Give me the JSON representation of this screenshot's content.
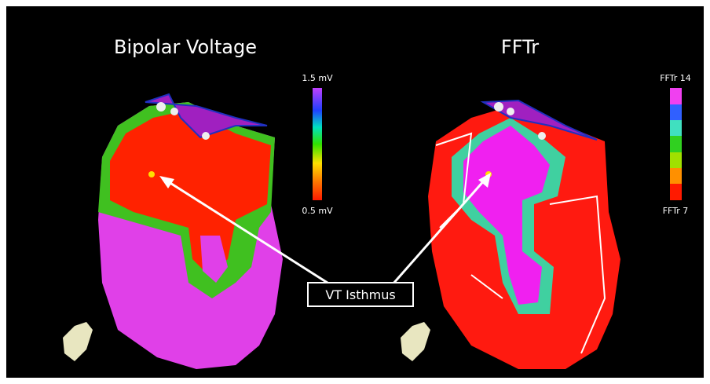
{
  "panels": [
    {
      "title": "Bipolar Voltage",
      "scale_max": "1.5 mV",
      "scale_min": "0.5 mV"
    },
    {
      "title": "FFTr",
      "scale_max": "FFTr 14",
      "scale_min": "FFTr 7"
    }
  ],
  "annotation": "VT Isthmus"
}
